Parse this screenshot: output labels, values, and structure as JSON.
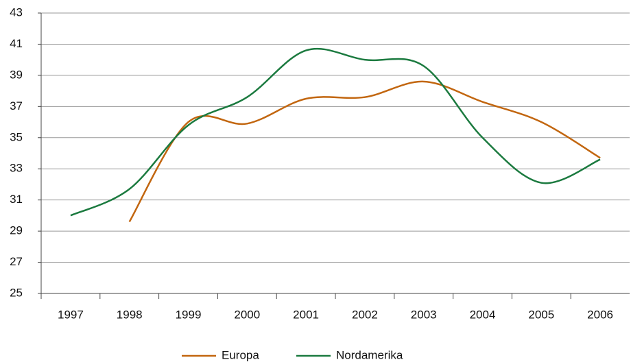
{
  "chart_data": {
    "type": "line",
    "categories": [
      "1997",
      "1998",
      "1999",
      "2000",
      "2001",
      "2002",
      "2003",
      "2004",
      "2005",
      "2006"
    ],
    "series": [
      {
        "name": "Europa",
        "color": "#c2660f",
        "values": [
          null,
          29.6,
          36.0,
          35.9,
          37.5,
          37.6,
          38.6,
          37.3,
          36.0,
          33.7
        ]
      },
      {
        "name": "Nordamerika",
        "color": "#1b7a3f",
        "values": [
          30.0,
          31.7,
          35.8,
          37.6,
          40.6,
          40.0,
          39.6,
          35.0,
          32.1,
          33.6
        ]
      }
    ],
    "ylim": [
      25,
      43
    ],
    "yticks": [
      25,
      27,
      29,
      31,
      33,
      35,
      37,
      39,
      41,
      43
    ],
    "grid": true
  }
}
